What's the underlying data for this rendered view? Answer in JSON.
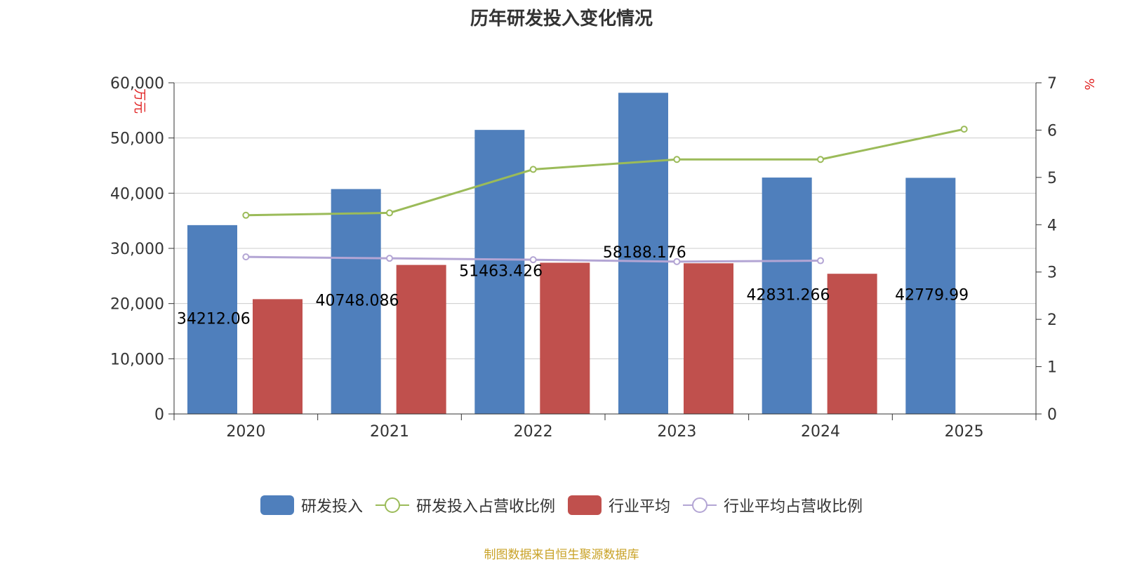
{
  "chart_data": {
    "type": "bar",
    "title": "历年研发投入变化情况",
    "categories": [
      "2020",
      "2021",
      "2022",
      "2023",
      "2024",
      "2025"
    ],
    "y_left": {
      "label": "万元",
      "ylim": [
        0,
        60000
      ],
      "ticks": [
        0,
        10000,
        20000,
        30000,
        40000,
        50000,
        60000
      ]
    },
    "y_right": {
      "label": "%",
      "ylim": [
        0,
        7
      ],
      "ticks": [
        0,
        1,
        2,
        3,
        4,
        5,
        6,
        7
      ]
    },
    "grid": true,
    "legend_position": "bottom",
    "series": [
      {
        "name": "研发投入",
        "type": "bar",
        "axis": "left",
        "color": "#4f7fbc",
        "values": [
          34212.06,
          40748.086,
          51463.426,
          58188.176,
          42831.266,
          42779.99
        ],
        "labels": [
          "34212.06",
          "40748.086",
          "51463.426",
          "58188.176",
          "42831.266",
          "42779.99"
        ]
      },
      {
        "name": "研发投入占营收比例",
        "type": "line",
        "axis": "right",
        "color": "#9bbb59",
        "values": [
          4.2,
          4.25,
          5.17,
          5.38,
          5.38,
          6.02
        ]
      },
      {
        "name": "行业平均",
        "type": "bar",
        "axis": "left",
        "color": "#c0504d",
        "values": [
          20800,
          27000,
          27400,
          27300,
          25400,
          null
        ]
      },
      {
        "name": "行业平均占营收比例",
        "type": "line",
        "axis": "right",
        "color": "#b3a5d4",
        "values": [
          3.32,
          3.29,
          3.26,
          3.22,
          3.24,
          null
        ]
      }
    ]
  },
  "source_note": "制图数据来自恒生聚源数据库"
}
